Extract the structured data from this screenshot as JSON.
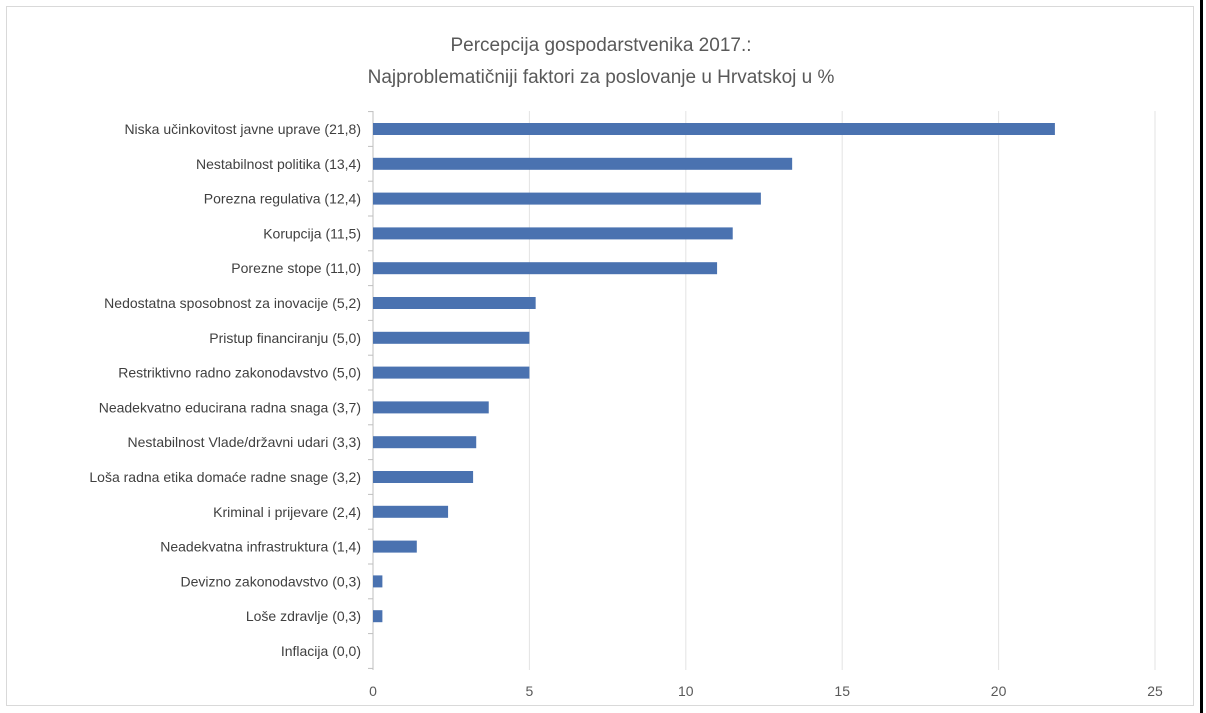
{
  "chart_data": {
    "type": "bar",
    "orientation": "horizontal",
    "title": "Percepcija gospodarstvenika 2017.:",
    "subtitle": "Najproblematičniji faktori za poslovanje u Hrvatskoj u %",
    "xlabel": "",
    "ylabel": "",
    "xlim": [
      0,
      25
    ],
    "x_ticks": [
      "0",
      "5",
      "10",
      "15",
      "20",
      "25"
    ],
    "grid": true,
    "legend": "none",
    "bar_color": "#4a72b0",
    "categories": [
      "Niska učinkovitost javne uprave (21,8)",
      "Nestabilnost politika (13,4)",
      "Porezna regulativa (12,4)",
      "Korupcija (11,5)",
      "Porezne stope (11,0)",
      "Nedostatna sposobnost za inovacije (5,2)",
      "Pristup financiranju (5,0)",
      "Restriktivno radno zakonodavstvo (5,0)",
      "Neadekvatno educirana radna snaga (3,7)",
      "Nestabilnost Vlade/državni udari (3,3)",
      "Loša radna etika domaće radne snage (3,2)",
      "Kriminal i prijevare (2,4)",
      "Neadekvatna infrastruktura (1,4)",
      "Devizno zakonodavstvo (0,3)",
      "Loše zdravlje (0,3)",
      "Inflacija (0,0)"
    ],
    "values": [
      21.8,
      13.4,
      12.4,
      11.5,
      11.0,
      5.2,
      5.0,
      5.0,
      3.7,
      3.3,
      3.2,
      2.4,
      1.4,
      0.3,
      0.3,
      0.0
    ]
  }
}
